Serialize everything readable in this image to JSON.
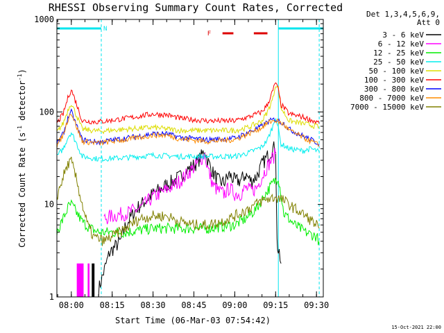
{
  "chart_data": {
    "type": "line",
    "title": "RHESSI Observing Summary Count Rates, Corrected",
    "xlabel": "Start Time (06-Mar-03 07:54:42)",
    "ylabel_main": "Corrected Count Rate (s",
    "ylabel_sup1": "-1",
    "ylabel_mid": " detector",
    "ylabel_sup2": "-1",
    "ylabel_end": ")",
    "yscale": "log",
    "ylim": [
      1,
      1000
    ],
    "xlim": [
      "07:54:42",
      "09:32:30"
    ],
    "y_ticks": [
      {
        "v": 1,
        "label": "1"
      },
      {
        "v": 10,
        "label": "10"
      },
      {
        "v": 100,
        "label": "100"
      },
      {
        "v": 1000,
        "label": "1000"
      }
    ],
    "x_ticks": [
      {
        "t": "08:00",
        "label": "08:00"
      },
      {
        "t": "08:15",
        "label": "08:15"
      },
      {
        "t": "08:30",
        "label": "08:30"
      },
      {
        "t": "08:45",
        "label": "08:45"
      },
      {
        "t": "09:00",
        "label": "09:00"
      },
      {
        "t": "09:15",
        "label": "09:15"
      },
      {
        "t": "09:30",
        "label": "09:30"
      }
    ],
    "legend_header": [
      "Det 1,3,4,5,6,9,",
      "Att 0"
    ],
    "legend_position": "right",
    "annotations": {
      "night_label": "N",
      "flare_label": "F",
      "night_bars": [
        [
          "07:54:42",
          "08:11:00"
        ],
        [
          "09:16:00",
          "09:32:30"
        ]
      ],
      "flare_bars": [
        [
          "08:55:30",
          "08:59:30"
        ],
        [
          "09:07:00",
          "09:12:00"
        ]
      ],
      "vlines_dashed": [
        "08:11:00",
        "09:31:00"
      ],
      "vlines_solid": [
        "09:16:00"
      ]
    },
    "colors": {
      "axis": "#000000",
      "night": "#00e5ee",
      "flare": "#dd0000"
    },
    "series": [
      {
        "name": "3 - 6 keV",
        "color": "#000000",
        "points": [
          [
            "08:10:00",
            1.2
          ],
          [
            "08:14:00",
            3
          ],
          [
            "08:18:00",
            4
          ],
          [
            "08:20:00",
            6
          ],
          [
            "08:24:00",
            9
          ],
          [
            "08:30:00",
            13
          ],
          [
            "08:36:00",
            17
          ],
          [
            "08:40:00",
            20
          ],
          [
            "08:43:00",
            24
          ],
          [
            "08:46:00",
            28
          ],
          [
            "08:48:00",
            34
          ],
          [
            "08:49:00",
            40
          ],
          [
            "08:50:00",
            30
          ],
          [
            "08:52:00",
            22
          ],
          [
            "08:54:00",
            18
          ],
          [
            "08:56:00",
            17
          ],
          [
            "08:58:00",
            21
          ],
          [
            "09:00:00",
            18
          ],
          [
            "09:02:00",
            18
          ],
          [
            "09:04:00",
            21
          ],
          [
            "09:06:00",
            18
          ],
          [
            "09:08:00",
            20
          ],
          [
            "09:10:00",
            27
          ],
          [
            "09:12:00",
            33
          ],
          [
            "09:14:00",
            40
          ],
          [
            "09:15:00",
            42
          ],
          [
            "09:15:30",
            4
          ],
          [
            "09:16:00",
            3
          ],
          [
            "09:17:00",
            2.3
          ]
        ]
      },
      {
        "name": "6 - 12 keV",
        "color": "#ff00ff",
        "points": [
          [
            "08:12:00",
            7
          ],
          [
            "08:15:00",
            7.5
          ],
          [
            "08:20:00",
            8
          ],
          [
            "08:25:00",
            9
          ],
          [
            "08:30:00",
            12
          ],
          [
            "08:36:00",
            15
          ],
          [
            "08:40:00",
            18
          ],
          [
            "08:43:00",
            22
          ],
          [
            "08:46:00",
            27
          ],
          [
            "08:48:00",
            32
          ],
          [
            "08:49:00",
            35
          ],
          [
            "08:50:00",
            25
          ],
          [
            "08:52:00",
            16
          ],
          [
            "08:54:00",
            14
          ],
          [
            "08:56:00",
            13
          ],
          [
            "08:58:00",
            15
          ],
          [
            "09:00:00",
            13
          ],
          [
            "09:02:00",
            13
          ],
          [
            "09:04:00",
            15
          ],
          [
            "09:06:00",
            14
          ],
          [
            "09:08:00",
            15
          ],
          [
            "09:10:00",
            20
          ],
          [
            "09:12:00",
            26
          ],
          [
            "09:14:00",
            32
          ],
          [
            "09:15:00",
            35
          ]
        ]
      },
      {
        "name": "12 - 25 keV",
        "color": "#00ee00",
        "points": [
          [
            "07:54:42",
            5
          ],
          [
            "07:57:00",
            7
          ],
          [
            "07:59:00",
            9.5
          ],
          [
            "08:00:00",
            10
          ],
          [
            "08:01:00",
            9
          ],
          [
            "08:04:00",
            6.5
          ],
          [
            "08:07:00",
            5.5
          ],
          [
            "08:10:00",
            5
          ],
          [
            "08:15:00",
            5
          ],
          [
            "08:20:00",
            5
          ],
          [
            "08:30:00",
            5.5
          ],
          [
            "08:40:00",
            5.5
          ],
          [
            "08:50:00",
            5.5
          ],
          [
            "09:00:00",
            6
          ],
          [
            "09:04:00",
            7
          ],
          [
            "09:08:00",
            9
          ],
          [
            "09:12:00",
            14
          ],
          [
            "09:14:00",
            17
          ],
          [
            "09:16:00",
            20
          ],
          [
            "09:18:00",
            8
          ],
          [
            "09:22:00",
            6
          ],
          [
            "09:26:00",
            5
          ],
          [
            "09:30:00",
            4.5
          ],
          [
            "09:31:00",
            4
          ]
        ]
      },
      {
        "name": "25 - 50 keV",
        "color": "#00eeee",
        "points": [
          [
            "07:54:42",
            33
          ],
          [
            "07:57:00",
            40
          ],
          [
            "07:59:00",
            55
          ],
          [
            "08:00:00",
            60
          ],
          [
            "08:02:00",
            45
          ],
          [
            "08:04:00",
            33
          ],
          [
            "08:10:00",
            31
          ],
          [
            "08:20:00",
            32
          ],
          [
            "08:30:00",
            34
          ],
          [
            "08:40:00",
            33
          ],
          [
            "08:50:00",
            33
          ],
          [
            "09:00:00",
            33
          ],
          [
            "09:05:00",
            36
          ],
          [
            "09:10:00",
            42
          ],
          [
            "09:12:00",
            50
          ],
          [
            "09:14:00",
            70
          ],
          [
            "09:15:00",
            90
          ],
          [
            "09:16:00",
            65
          ],
          [
            "09:17:00",
            45
          ],
          [
            "09:20:00",
            40
          ],
          [
            "09:25:00",
            38
          ],
          [
            "09:28:00",
            40
          ],
          [
            "09:31:00",
            37
          ]
        ]
      },
      {
        "name": "50 - 100 keV",
        "color": "#dddd00",
        "points": [
          [
            "07:54:42",
            60
          ],
          [
            "07:57:00",
            75
          ],
          [
            "07:59:00",
            110
          ],
          [
            "08:00:00",
            125
          ],
          [
            "08:02:00",
            90
          ],
          [
            "08:04:00",
            65
          ],
          [
            "08:10:00",
            62
          ],
          [
            "08:20:00",
            65
          ],
          [
            "08:30:00",
            68
          ],
          [
            "08:40:00",
            63
          ],
          [
            "08:50:00",
            63
          ],
          [
            "09:00:00",
            63
          ],
          [
            "09:05:00",
            68
          ],
          [
            "09:10:00",
            80
          ],
          [
            "09:12:00",
            100
          ],
          [
            "09:14:00",
            140
          ],
          [
            "09:15:00",
            200
          ],
          [
            "09:16:00",
            180
          ],
          [
            "09:17:00",
            110
          ],
          [
            "09:20:00",
            80
          ],
          [
            "09:25:00",
            75
          ],
          [
            "09:30:00",
            70
          ],
          [
            "09:31:00",
            68
          ]
        ]
      },
      {
        "name": "100 - 300 keV",
        "color": "#ff0000",
        "points": [
          [
            "07:54:42",
            75
          ],
          [
            "07:57:00",
            95
          ],
          [
            "07:59:00",
            150
          ],
          [
            "08:00:00",
            175
          ],
          [
            "08:02:00",
            120
          ],
          [
            "08:04:00",
            80
          ],
          [
            "08:10:00",
            78
          ],
          [
            "08:20:00",
            85
          ],
          [
            "08:30:00",
            95
          ],
          [
            "08:35:00",
            93
          ],
          [
            "08:40:00",
            85
          ],
          [
            "08:50:00",
            80
          ],
          [
            "09:00:00",
            80
          ],
          [
            "09:05:00",
            88
          ],
          [
            "09:10:00",
            100
          ],
          [
            "09:12:00",
            120
          ],
          [
            "09:14:00",
            170
          ],
          [
            "09:15:00",
            210
          ],
          [
            "09:16:00",
            170
          ],
          [
            "09:17:00",
            120
          ],
          [
            "09:20:00",
            95
          ],
          [
            "09:25:00",
            88
          ],
          [
            "09:30:00",
            78
          ],
          [
            "09:31:00",
            75
          ]
        ]
      },
      {
        "name": "300 - 800 keV",
        "color": "#0000ff",
        "points": [
          [
            "07:54:42",
            45
          ],
          [
            "07:57:00",
            58
          ],
          [
            "07:59:00",
            90
          ],
          [
            "08:00:00",
            100
          ],
          [
            "08:02:00",
            70
          ],
          [
            "08:04:00",
            50
          ],
          [
            "08:10:00",
            47
          ],
          [
            "08:20:00",
            52
          ],
          [
            "08:30:00",
            58
          ],
          [
            "08:35:00",
            58
          ],
          [
            "08:40:00",
            53
          ],
          [
            "08:50:00",
            50
          ],
          [
            "09:00:00",
            52
          ],
          [
            "09:05:00",
            60
          ],
          [
            "09:10:00",
            70
          ],
          [
            "09:12:00",
            78
          ],
          [
            "09:14:00",
            82
          ],
          [
            "09:15:00",
            83
          ],
          [
            "09:18:00",
            75
          ],
          [
            "09:20:00",
            65
          ],
          [
            "09:25:00",
            55
          ],
          [
            "09:30:00",
            47
          ],
          [
            "09:31:00",
            45
          ]
        ]
      },
      {
        "name": "800 - 7000 keV",
        "color": "#ff8c00",
        "points": [
          [
            "07:54:42",
            43
          ],
          [
            "07:57:00",
            56
          ],
          [
            "07:59:00",
            88
          ],
          [
            "08:00:00",
            98
          ],
          [
            "08:02:00",
            68
          ],
          [
            "08:04:00",
            48
          ],
          [
            "08:10:00",
            46
          ],
          [
            "08:20:00",
            50
          ],
          [
            "08:30:00",
            56
          ],
          [
            "08:35:00",
            56
          ],
          [
            "08:40:00",
            51
          ],
          [
            "08:50:00",
            48
          ],
          [
            "09:00:00",
            50
          ],
          [
            "09:05:00",
            58
          ],
          [
            "09:10:00",
            68
          ],
          [
            "09:12:00",
            76
          ],
          [
            "09:14:00",
            80
          ],
          [
            "09:15:00",
            81
          ],
          [
            "09:18:00",
            73
          ],
          [
            "09:20:00",
            63
          ],
          [
            "09:25:00",
            53
          ],
          [
            "09:30:00",
            45
          ],
          [
            "09:31:00",
            43
          ]
        ]
      },
      {
        "name": "7000 - 15000 keV",
        "color": "#808000",
        "points": [
          [
            "07:54:42",
            12
          ],
          [
            "07:57:00",
            20
          ],
          [
            "07:59:00",
            28
          ],
          [
            "08:00:00",
            29
          ],
          [
            "08:02:00",
            18
          ],
          [
            "08:04:00",
            10
          ],
          [
            "08:06:00",
            6
          ],
          [
            "08:08:00",
            4.5
          ],
          [
            "08:12:00",
            4
          ],
          [
            "08:15:00",
            4.5
          ],
          [
            "08:20:00",
            5.5
          ],
          [
            "08:25:00",
            7
          ],
          [
            "08:30:00",
            7.5
          ],
          [
            "08:35:00",
            7.5
          ],
          [
            "08:40:00",
            6.5
          ],
          [
            "08:45:00",
            6
          ],
          [
            "08:50:00",
            6
          ],
          [
            "08:55:00",
            6.5
          ],
          [
            "09:00:00",
            7.5
          ],
          [
            "09:05:00",
            9
          ],
          [
            "09:10:00",
            11
          ],
          [
            "09:15:00",
            12
          ],
          [
            "09:18:00",
            11
          ],
          [
            "09:22:00",
            9
          ],
          [
            "09:26:00",
            7.5
          ],
          [
            "09:30:00",
            6
          ],
          [
            "09:31:00",
            5.5
          ]
        ]
      }
    ],
    "bursts": [
      {
        "color": "#ff00ff",
        "from": "08:02:00",
        "to": "08:04:30",
        "y0": 1,
        "y1": 2.3
      },
      {
        "color": "#ff00ff",
        "from": "08:06:00",
        "to": "08:06:40",
        "y0": 1,
        "y1": 2.3
      },
      {
        "color": "#000000",
        "from": "08:07:30",
        "to": "08:08:30",
        "y0": 1,
        "y1": 2.3
      }
    ]
  },
  "footer": {
    "timestamp": "15-Oct-2021 22:00"
  }
}
